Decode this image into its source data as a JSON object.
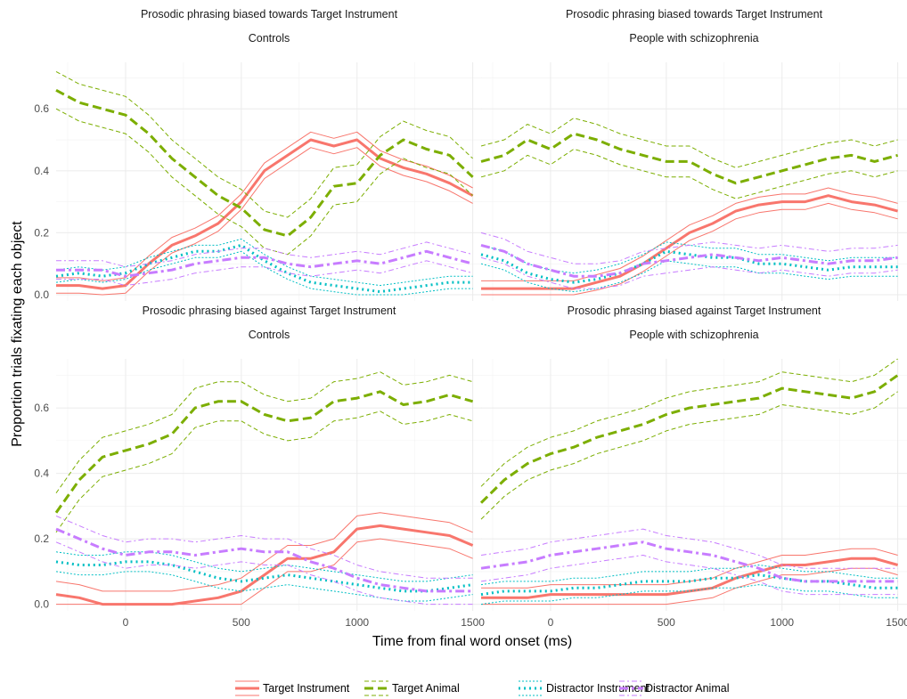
{
  "chart_data": {
    "type": "line",
    "xlabel": "Time from final word onset (ms)",
    "ylabel": "Proportion trials fixating each object",
    "x_ticks": [
      0,
      500,
      1000,
      1500
    ],
    "y_ticks": [
      "0.0",
      "0.2",
      "0.4",
      "0.6"
    ],
    "xlim": [
      -300,
      1540
    ],
    "ylim": [
      -0.02,
      0.75
    ],
    "grid": true,
    "legend_position": "bottom",
    "series_styles": [
      {
        "name": "Target Instrument",
        "color": "#F8766D",
        "dash": "solid"
      },
      {
        "name": "Target Animal",
        "color": "#7CAE00",
        "dash": "long-dash"
      },
      {
        "name": "Distractor Instrument",
        "color": "#00BFC4",
        "dash": "dotted"
      },
      {
        "name": "Distractor Animal",
        "color": "#C77CFF",
        "dash": "dot-dash"
      }
    ],
    "x": [
      -300,
      -200,
      -100,
      0,
      100,
      200,
      300,
      400,
      500,
      600,
      700,
      800,
      900,
      1000,
      1100,
      1200,
      1300,
      1400,
      1500
    ],
    "panels": [
      {
        "strip_top": "Prosodic phrasing biased towards Target Instrument",
        "strip_bottom": "Controls",
        "series": [
          {
            "name": "Target Instrument",
            "values": [
              0.03,
              0.03,
              0.02,
              0.03,
              0.1,
              0.16,
              0.19,
              0.23,
              0.3,
              0.4,
              0.45,
              0.5,
              0.48,
              0.5,
              0.44,
              0.41,
              0.39,
              0.36,
              0.32
            ],
            "half_width": 0.025
          },
          {
            "name": "Target Animal",
            "values": [
              0.66,
              0.62,
              0.6,
              0.58,
              0.52,
              0.44,
              0.38,
              0.32,
              0.28,
              0.21,
              0.19,
              0.25,
              0.35,
              0.36,
              0.45,
              0.5,
              0.47,
              0.45,
              0.38
            ],
            "half_width": 0.06
          },
          {
            "name": "Distractor Instrument",
            "values": [
              0.06,
              0.07,
              0.06,
              0.07,
              0.1,
              0.12,
              0.14,
              0.14,
              0.16,
              0.11,
              0.07,
              0.04,
              0.03,
              0.02,
              0.01,
              0.02,
              0.03,
              0.04,
              0.04
            ],
            "half_width": 0.02
          },
          {
            "name": "Distractor Animal",
            "values": [
              0.08,
              0.08,
              0.08,
              0.06,
              0.07,
              0.08,
              0.1,
              0.11,
              0.12,
              0.12,
              0.1,
              0.09,
              0.1,
              0.11,
              0.1,
              0.12,
              0.14,
              0.12,
              0.1
            ],
            "half_width": 0.03
          }
        ]
      },
      {
        "strip_top": "Prosodic phrasing biased towards Target Instrument",
        "strip_bottom": "People with schizophrenia",
        "series": [
          {
            "name": "Target Instrument",
            "values": [
              0.02,
              0.02,
              0.02,
              0.02,
              0.02,
              0.04,
              0.06,
              0.1,
              0.15,
              0.2,
              0.23,
              0.27,
              0.29,
              0.3,
              0.3,
              0.32,
              0.3,
              0.29,
              0.27
            ],
            "half_width": 0.025
          },
          {
            "name": "Target Animal",
            "values": [
              0.43,
              0.45,
              0.5,
              0.47,
              0.52,
              0.5,
              0.47,
              0.45,
              0.43,
              0.43,
              0.39,
              0.36,
              0.38,
              0.4,
              0.42,
              0.44,
              0.45,
              0.43,
              0.45
            ],
            "half_width": 0.05
          },
          {
            "name": "Distractor Instrument",
            "values": [
              0.13,
              0.11,
              0.07,
              0.05,
              0.04,
              0.05,
              0.07,
              0.1,
              0.14,
              0.13,
              0.12,
              0.12,
              0.1,
              0.1,
              0.09,
              0.08,
              0.09,
              0.09,
              0.09
            ],
            "half_width": 0.03
          },
          {
            "name": "Distractor Animal",
            "values": [
              0.16,
              0.14,
              0.1,
              0.08,
              0.06,
              0.06,
              0.07,
              0.1,
              0.11,
              0.12,
              0.13,
              0.12,
              0.11,
              0.12,
              0.11,
              0.1,
              0.11,
              0.11,
              0.12
            ],
            "half_width": 0.04
          }
        ]
      },
      {
        "strip_top": "Prosodic phrasing biased against Target Instrument",
        "strip_bottom": "Controls",
        "series": [
          {
            "name": "Target Instrument",
            "values": [
              0.03,
              0.02,
              0.0,
              0.0,
              0.0,
              0.0,
              0.01,
              0.02,
              0.04,
              0.09,
              0.14,
              0.14,
              0.16,
              0.23,
              0.24,
              0.23,
              0.22,
              0.21,
              0.18
            ],
            "half_width": 0.04
          },
          {
            "name": "Target Animal",
            "values": [
              0.28,
              0.38,
              0.45,
              0.47,
              0.49,
              0.52,
              0.6,
              0.62,
              0.62,
              0.58,
              0.56,
              0.57,
              0.62,
              0.63,
              0.65,
              0.61,
              0.62,
              0.64,
              0.62
            ],
            "half_width": 0.06
          },
          {
            "name": "Distractor Instrument",
            "values": [
              0.13,
              0.12,
              0.12,
              0.13,
              0.13,
              0.12,
              0.1,
              0.08,
              0.07,
              0.08,
              0.09,
              0.08,
              0.07,
              0.06,
              0.05,
              0.04,
              0.04,
              0.05,
              0.06
            ],
            "half_width": 0.03
          },
          {
            "name": "Distractor Animal",
            "values": [
              0.23,
              0.2,
              0.17,
              0.15,
              0.16,
              0.16,
              0.15,
              0.16,
              0.17,
              0.16,
              0.16,
              0.13,
              0.11,
              0.08,
              0.06,
              0.05,
              0.04,
              0.04,
              0.04
            ],
            "half_width": 0.04
          }
        ]
      },
      {
        "strip_top": "Prosodic phrasing biased against Target Instrument",
        "strip_bottom": "People with schizophrenia",
        "series": [
          {
            "name": "Target Instrument",
            "values": [
              0.02,
              0.02,
              0.02,
              0.03,
              0.03,
              0.03,
              0.03,
              0.03,
              0.03,
              0.04,
              0.05,
              0.08,
              0.1,
              0.12,
              0.12,
              0.13,
              0.14,
              0.14,
              0.12
            ],
            "half_width": 0.03
          },
          {
            "name": "Target Animal",
            "values": [
              0.31,
              0.38,
              0.43,
              0.46,
              0.48,
              0.51,
              0.53,
              0.55,
              0.58,
              0.6,
              0.61,
              0.62,
              0.63,
              0.66,
              0.65,
              0.64,
              0.63,
              0.65,
              0.7
            ],
            "half_width": 0.05
          },
          {
            "name": "Distractor Instrument",
            "values": [
              0.03,
              0.04,
              0.04,
              0.04,
              0.05,
              0.05,
              0.06,
              0.07,
              0.07,
              0.07,
              0.08,
              0.08,
              0.09,
              0.08,
              0.07,
              0.07,
              0.06,
              0.05,
              0.05
            ],
            "half_width": 0.03
          },
          {
            "name": "Distractor Animal",
            "values": [
              0.11,
              0.12,
              0.13,
              0.15,
              0.16,
              0.17,
              0.18,
              0.19,
              0.17,
              0.16,
              0.15,
              0.13,
              0.11,
              0.08,
              0.07,
              0.07,
              0.07,
              0.07,
              0.07
            ],
            "half_width": 0.04
          }
        ]
      }
    ]
  }
}
